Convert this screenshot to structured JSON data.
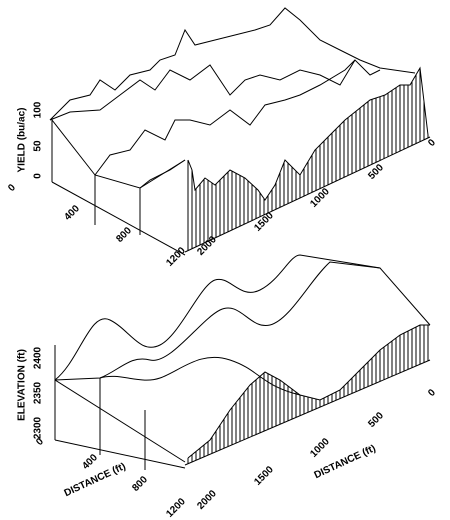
{
  "top_panel": {
    "y_axis_label": "YIELD (bu/ac)",
    "y_ticks": [
      "0",
      "50",
      "100"
    ],
    "depth_ticks": [
      "0",
      "400",
      "800",
      "1200"
    ],
    "distance_ticks": [
      "2000",
      "1500",
      "1000",
      "500",
      "0"
    ]
  },
  "bottom_panel": {
    "y_axis_label": "ELEVATION (ft)",
    "y_ticks": [
      "2300",
      "2350",
      "2400"
    ],
    "depth_axis_label": "DISTANCE (ft)",
    "depth_ticks": [
      "0",
      "400",
      "800",
      "1200"
    ],
    "distance_axis_label": "DISTANCE (ft)",
    "distance_ticks": [
      "2000",
      "1500",
      "1000",
      "500",
      "0"
    ]
  }
}
